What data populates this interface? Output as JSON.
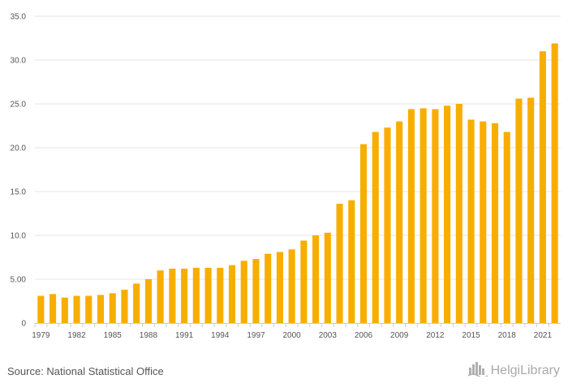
{
  "chart_data": {
    "type": "bar",
    "categories": [
      "1979",
      "1980",
      "1981",
      "1982",
      "1983",
      "1984",
      "1985",
      "1986",
      "1987",
      "1988",
      "1989",
      "1990",
      "1991",
      "1992",
      "1993",
      "1994",
      "1995",
      "1996",
      "1997",
      "1998",
      "1999",
      "2000",
      "2001",
      "2002",
      "2003",
      "2004",
      "2005",
      "2006",
      "2007",
      "2008",
      "2009",
      "2010",
      "2011",
      "2012",
      "2013",
      "2014",
      "2015",
      "2016",
      "2017",
      "2018",
      "2019",
      "2020",
      "2021",
      "2022"
    ],
    "values": [
      3.1,
      3.3,
      2.9,
      3.1,
      3.1,
      3.2,
      3.4,
      3.8,
      4.5,
      5.0,
      6.0,
      6.2,
      6.2,
      6.3,
      6.3,
      6.3,
      6.6,
      7.1,
      7.3,
      7.9,
      8.1,
      8.4,
      9.4,
      10.0,
      10.3,
      13.6,
      14.0,
      20.4,
      21.8,
      22.3,
      23.0,
      24.4,
      24.5,
      24.4,
      24.8,
      25.0,
      23.2,
      23.0,
      22.8,
      21.8,
      25.6,
      25.7,
      31.0,
      31.9
    ],
    "x_tick_labels": [
      "1979",
      "1982",
      "1985",
      "1988",
      "1991",
      "1994",
      "1997",
      "2000",
      "2003",
      "2006",
      "2009",
      "2012",
      "2015",
      "2018",
      "2021"
    ],
    "y_tick_labels": [
      "0",
      "5.00",
      "10.0",
      "15.0",
      "20.0",
      "25.0",
      "30.0",
      "35.0"
    ],
    "y_ticks": [
      0,
      5,
      10,
      15,
      20,
      25,
      30,
      35
    ],
    "ylim": [
      0,
      35
    ],
    "grid": "horizontal",
    "bar_color": "#F7AE00",
    "title": "",
    "xlabel": "",
    "ylabel": ""
  },
  "footer": {
    "source": "Source: National Statistical Office",
    "logo_text": "HelgiLibrary",
    "logo_icon": "city-skyline-icon"
  }
}
